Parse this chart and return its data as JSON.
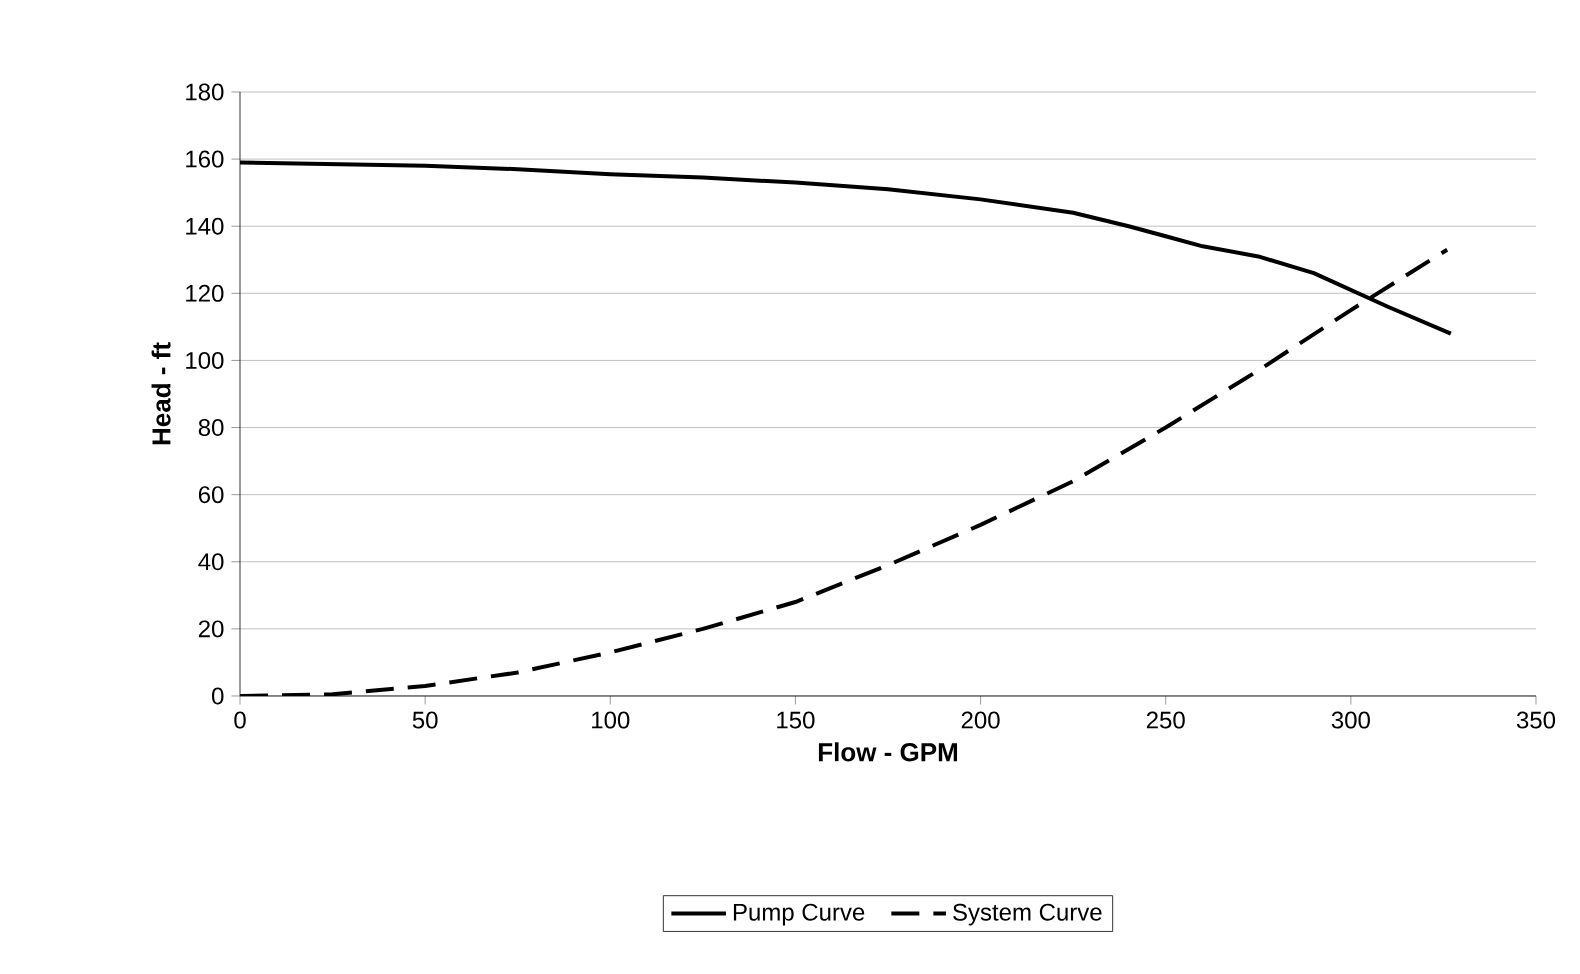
{
  "chart_data": {
    "type": "line",
    "xlabel": "Flow - GPM",
    "ylabel": "Head - ft",
    "xlim": [
      0,
      350
    ],
    "ylim": [
      0,
      180
    ],
    "xticks": [
      0,
      50,
      100,
      150,
      200,
      250,
      300,
      350
    ],
    "yticks": [
      0,
      20,
      40,
      60,
      80,
      100,
      120,
      140,
      160,
      180
    ],
    "grid": "y",
    "legend": "bottom",
    "marker": "none",
    "series": [
      {
        "name": "Pump Curve",
        "color": "#000000",
        "line_style": "solid",
        "x": [
          0,
          25,
          50,
          75,
          100,
          125,
          150,
          175,
          200,
          225,
          240,
          250,
          260,
          275,
          290,
          300,
          310,
          327
        ],
        "values": [
          159,
          158.5,
          158,
          157,
          155.5,
          154.5,
          153,
          151,
          148,
          144,
          140,
          137,
          134,
          131,
          126,
          121,
          116,
          108
        ]
      },
      {
        "name": "System Curve",
        "color": "#000000",
        "line_style": "dashed",
        "x": [
          0,
          25,
          50,
          75,
          100,
          125,
          150,
          175,
          200,
          225,
          250,
          275,
          300,
          326
        ],
        "values": [
          0,
          0.5,
          3,
          7,
          13,
          20,
          28,
          39,
          51,
          64,
          80,
          97,
          115,
          133
        ]
      }
    ]
  }
}
